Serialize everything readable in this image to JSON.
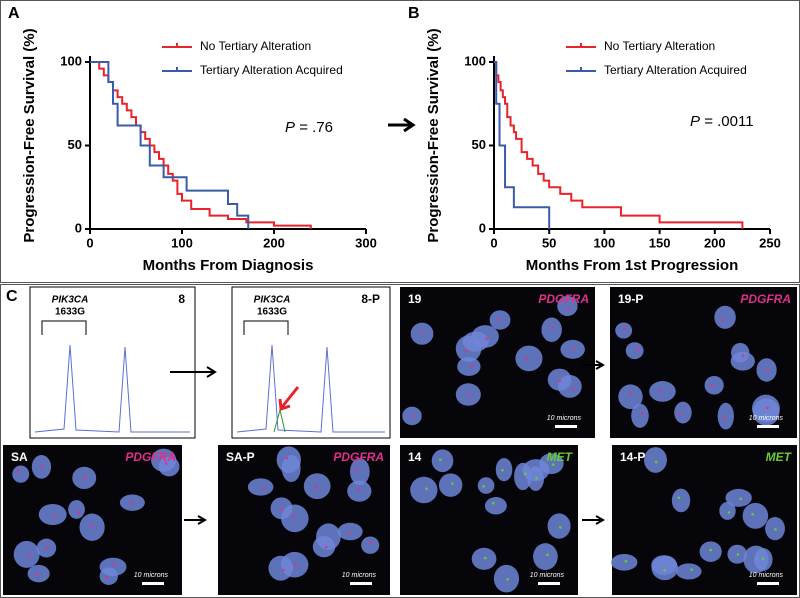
{
  "chart_data": [
    {
      "type": "step",
      "panel_label": "A",
      "x_label": "Months From Diagnosis",
      "y_label": "Progression-Free Survival (%)",
      "xlim": [
        0,
        300
      ],
      "xticks": [
        0,
        100,
        200,
        300
      ],
      "ylim": [
        0,
        100
      ],
      "yticks": [
        0,
        50,
        100
      ],
      "annotation": {
        "prefix": "P",
        "text": "= .76"
      },
      "series": [
        {
          "name": "No Tertiary Alteration",
          "color": "#e8232b",
          "x": [
            0,
            10,
            15,
            20,
            25,
            30,
            35,
            40,
            45,
            50,
            55,
            60,
            65,
            70,
            75,
            80,
            85,
            90,
            95,
            100,
            110,
            130,
            150,
            170,
            200,
            240
          ],
          "values": [
            100,
            96,
            92,
            88,
            83,
            79,
            75,
            71,
            67,
            62,
            58,
            54,
            50,
            46,
            42,
            38,
            33,
            29,
            21,
            17,
            12,
            8,
            6,
            4,
            2,
            0
          ]
        },
        {
          "name": "Tertiary Alteration Acquired",
          "color": "#3a5ba8",
          "x": [
            0,
            20,
            25,
            30,
            55,
            65,
            80,
            105,
            150,
            160,
            172
          ],
          "values": [
            100,
            88,
            75,
            62,
            50,
            38,
            31,
            23,
            15,
            8,
            0
          ]
        }
      ]
    },
    {
      "type": "step",
      "panel_label": "B",
      "x_label": "Months From 1st Progression",
      "y_label": "Progression-Free Survival (%)",
      "xlim": [
        0,
        250
      ],
      "xticks": [
        0,
        50,
        100,
        150,
        200,
        250
      ],
      "ylim": [
        0,
        100
      ],
      "yticks": [
        0,
        50,
        100
      ],
      "annotation": {
        "prefix": "P",
        "text": "= .0011"
      },
      "series": [
        {
          "name": "No Tertiary Alteration",
          "color": "#e8232b",
          "x": [
            0,
            2,
            4,
            6,
            8,
            10,
            12,
            15,
            18,
            20,
            25,
            30,
            35,
            40,
            45,
            50,
            60,
            70,
            80,
            115,
            150,
            225
          ],
          "values": [
            100,
            92,
            88,
            83,
            79,
            75,
            67,
            62,
            58,
            54,
            46,
            42,
            38,
            33,
            29,
            25,
            21,
            17,
            13,
            8,
            4,
            0
          ]
        },
        {
          "name": "Tertiary Alteration Acquired",
          "color": "#3a5ba8",
          "x": [
            0,
            2,
            5,
            10,
            18,
            50
          ],
          "values": [
            100,
            75,
            50,
            25,
            13,
            0
          ]
        }
      ]
    }
  ],
  "panel_c": {
    "label": "C",
    "chromatograms": [
      {
        "gene": "PIK3CA",
        "mutation": "1633G",
        "sample": "8"
      },
      {
        "gene": "PIK3CA",
        "mutation": "1633G",
        "sample": "8-P"
      }
    ],
    "images": [
      {
        "sample": "19",
        "probe": "PDGFRA",
        "probe_color": "#e0308a",
        "scale": "10 microns"
      },
      {
        "sample": "19-P",
        "probe": "PDGFRA",
        "probe_color": "#e0308a",
        "scale": "10 microns"
      },
      {
        "sample": "SA",
        "probe": "PDGFRA",
        "probe_color": "#e0308a",
        "scale": "10 microns"
      },
      {
        "sample": "SA-P",
        "probe": "PDGFRA",
        "probe_color": "#e0308a",
        "scale": "10 microns"
      },
      {
        "sample": "14",
        "probe": "MET",
        "probe_color": "#66cc33",
        "scale": "10 microns"
      },
      {
        "sample": "14-P",
        "probe": "MET",
        "probe_color": "#66cc33",
        "scale": "10 microns"
      }
    ]
  }
}
